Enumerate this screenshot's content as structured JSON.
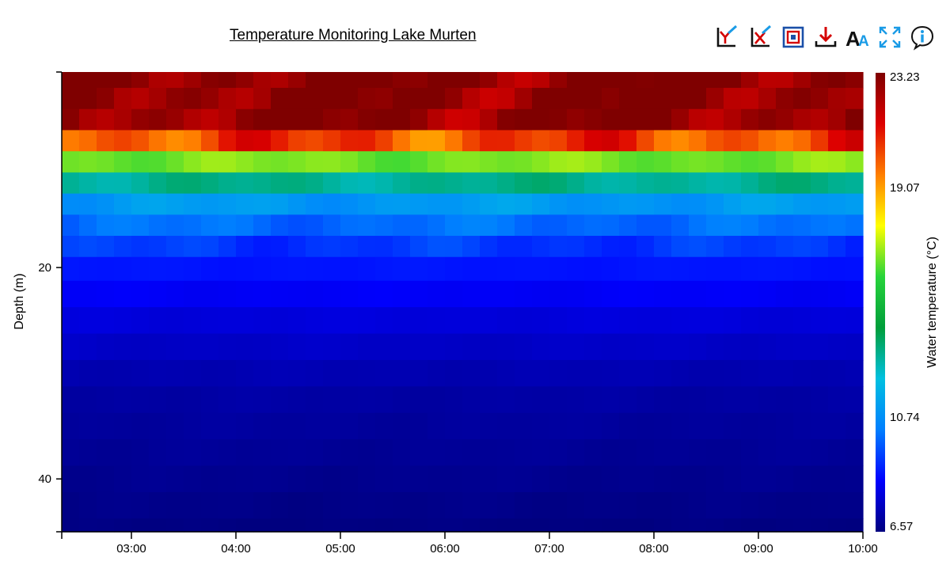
{
  "header": {
    "title": "Temperature Monitoring Lake Murten"
  },
  "toolbar": {
    "buttons": [
      {
        "name": "y-axis-bounds-button",
        "icon": "y-axis-edit-icon"
      },
      {
        "name": "x-axis-bounds-button",
        "icon": "x-axis-edit-icon"
      },
      {
        "name": "colorscale-button",
        "icon": "color-frame-icon"
      },
      {
        "name": "download-button",
        "icon": "download-icon"
      },
      {
        "name": "font-size-button",
        "icon": "font-size-icon"
      },
      {
        "name": "fullscreen-button",
        "icon": "fullscreen-icon"
      },
      {
        "name": "info-button",
        "icon": "info-icon"
      }
    ]
  },
  "chart_data": {
    "type": "heatmap",
    "title": "Temperature Monitoring Lake Murten",
    "xlabel": "",
    "ylabel": "Depth (m)",
    "x_ticks": [
      "03:00",
      "04:00",
      "05:00",
      "06:00",
      "07:00",
      "08:00",
      "09:00",
      "10:00"
    ],
    "y_ticks": [
      20,
      40
    ],
    "ylim": [
      1.5,
      45
    ],
    "y_inverted": true,
    "time_range": [
      "02:20",
      "10:00"
    ],
    "colorbar": {
      "label": "Water temperature (°C)",
      "ticks": [
        23.23,
        19.07,
        10.74,
        6.57
      ],
      "min": 6.57,
      "max": 23.23,
      "colors": [
        "#00007f",
        "#0000ff",
        "#007fff",
        "#00c0e0",
        "#009e3a",
        "#27d43a",
        "#ffff00",
        "#ff7f00",
        "#dd0000",
        "#7f0000"
      ]
    },
    "depths": [
      2,
      4,
      6,
      8,
      10,
      12,
      14,
      16,
      18,
      20,
      22.5,
      25,
      27.5,
      30,
      32.5,
      35,
      37.5,
      40,
      42.5,
      45
    ],
    "temperature_profile": [
      23.2,
      23.1,
      23.0,
      20.4,
      16.5,
      13.0,
      11.0,
      10.0,
      9.2,
      8.7,
      8.3,
      7.9,
      7.6,
      7.3,
      7.1,
      7.0,
      6.9,
      6.8,
      6.7,
      6.6
    ]
  }
}
